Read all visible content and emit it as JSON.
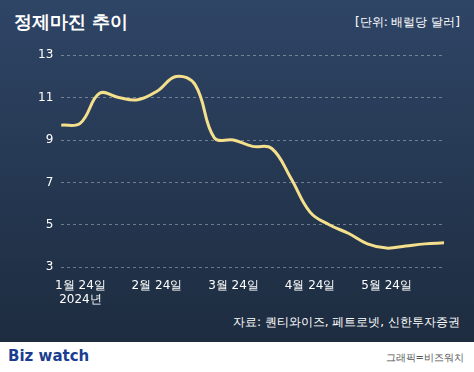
{
  "chart_data": {
    "type": "line",
    "title": "정제마진 추이",
    "subtitle": "[단위: 배럴당 달러]",
    "source": "자료: 퀀티와이즈, 페트로넷, 신한투자증권",
    "categories": [
      null,
      "1월 24일\n2024년",
      null,
      null,
      null,
      "2월 24일",
      null,
      null,
      null,
      "3월 24일",
      null,
      null,
      null,
      "4월 24일",
      null,
      null,
      null,
      "5월 24일",
      null,
      null,
      null
    ],
    "values": [
      9.7,
      9.8,
      11.2,
      11.0,
      10.9,
      11.3,
      12.0,
      11.6,
      9.1,
      9.0,
      8.7,
      8.6,
      7.2,
      5.6,
      5.0,
      4.6,
      4.1,
      3.9,
      4.0,
      4.1,
      4.15
    ],
    "color": "#f3df8c",
    "ylim": [
      3,
      13
    ],
    "yticks": [
      3,
      5,
      7,
      9,
      11,
      13
    ],
    "grid": true
  },
  "footer": {
    "logo": "Biz watch",
    "credit": "그래픽=비즈워치"
  }
}
